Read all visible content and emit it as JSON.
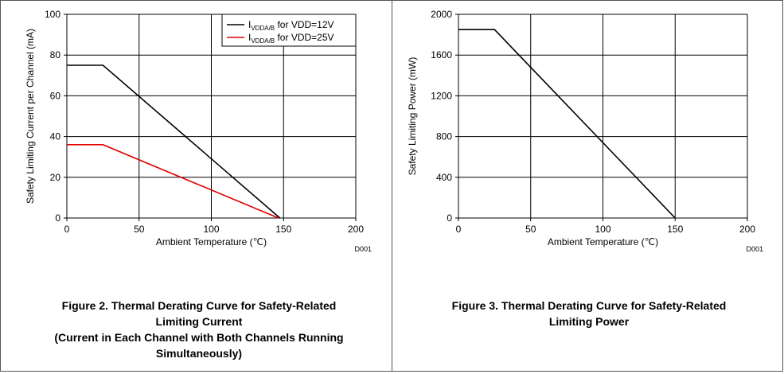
{
  "chart_data": [
    {
      "type": "line",
      "id": "current",
      "xlabel": "Ambient Temperature (℃)",
      "ylabel": "Safety Limiting Current per Channel (mA)",
      "xlim": [
        0,
        200
      ],
      "ylim": [
        0,
        100
      ],
      "x_ticks": [
        0,
        50,
        100,
        150,
        200
      ],
      "y_ticks": [
        0,
        20,
        40,
        60,
        80,
        100
      ],
      "grid": true,
      "legend": "top-right",
      "code": "D001",
      "series": [
        {
          "name_main": "I",
          "name_sub": "VDDA/B",
          "name_rest": " for VDD=12V",
          "color": "#000000",
          "points": [
            [
              0,
              75
            ],
            [
              25,
              75
            ],
            [
              147.5,
              0
            ]
          ]
        },
        {
          "name_main": "I",
          "name_sub": "VDDA/B",
          "name_rest": " for VDD=25V",
          "color": "#e00000",
          "points": [
            [
              0,
              36
            ],
            [
              25,
              36
            ],
            [
              146.5,
              0
            ]
          ]
        }
      ]
    },
    {
      "type": "line",
      "id": "power",
      "xlabel": "Ambient Temperature (℃)",
      "ylabel": "Safety Limiting Power (mW)",
      "xlim": [
        0,
        200
      ],
      "ylim": [
        0,
        2000
      ],
      "x_ticks": [
        0,
        50,
        100,
        150,
        200
      ],
      "y_ticks": [
        0,
        400,
        800,
        1200,
        1600,
        2000
      ],
      "grid": true,
      "code": "D001",
      "series": [
        {
          "color": "#000000",
          "points": [
            [
              0,
              1850
            ],
            [
              25,
              1850
            ],
            [
              150,
              0
            ]
          ]
        }
      ]
    }
  ],
  "captions": {
    "left": [
      "Figure 2. Thermal Derating Curve for Safety-Related",
      "Limiting Current",
      "(Current in Each Channel with Both Channels Running",
      "Simultaneously)"
    ],
    "right": [
      "Figure 3. Thermal Derating Curve for Safety-Related",
      "Limiting Power"
    ]
  }
}
